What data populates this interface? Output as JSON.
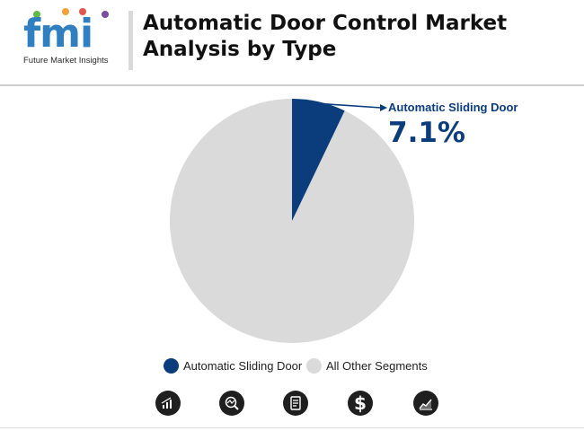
{
  "logo": {
    "mark": "fmi",
    "company": "Future Market Insights",
    "dot_colors": [
      "#5dbb46",
      "#f2a13b",
      "#e2574c",
      "#7b4fa0"
    ]
  },
  "title": "Automatic Door Control Market\nAnalysis by Type",
  "chart_data": {
    "type": "pie",
    "categories": [
      "Automatic Sliding Door",
      "All Other Segments"
    ],
    "values": [
      7.1,
      92.9
    ],
    "colors": [
      "#0b3d7c",
      "#dadada"
    ],
    "annotation": {
      "label": "Automatic Sliding Door",
      "value": "7.1%"
    },
    "legend": "bottom-center",
    "start": "12 o'clock, clockwise"
  },
  "legend": [
    {
      "label": "Automatic Sliding Door",
      "color": "#0b3d7c"
    },
    {
      "label": "All Other Segments",
      "color": "#dadada"
    }
  ],
  "footer_icons": [
    "bar-chart-icon",
    "magnifier-chart-icon",
    "report-icon",
    "dollar-icon",
    "area-chart-icon"
  ]
}
